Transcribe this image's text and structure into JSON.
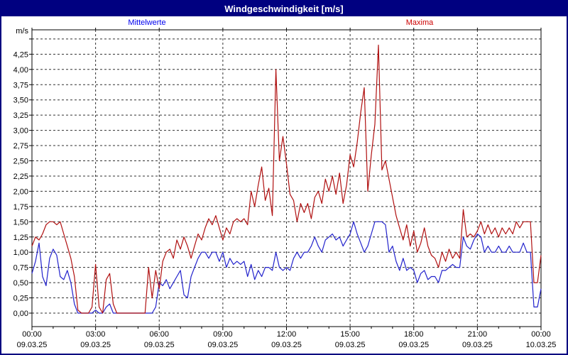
{
  "window": {
    "title": "Windgeschwindigkeit [m/s]",
    "title_bar_color": "#000080",
    "border_color": "#000080",
    "background": "#ffffff"
  },
  "legend": {
    "mean_label": "Mittelwerte",
    "mean_text_color": "#0000ee",
    "max_label": "Maxima",
    "max_text_color": "#cc0000"
  },
  "axes": {
    "y_unit_label": "m/s",
    "y_tick_labels": [
      "0,00",
      "0,25",
      "0,50",
      "0,75",
      "1,00",
      "1,25",
      "1,50",
      "1,75",
      "2,00",
      "2,25",
      "2,50",
      "2,75",
      "3,00",
      "3,25",
      "3,50",
      "3,75",
      "4,00",
      "4,25"
    ],
    "grid": "dashed horizontal every 0.25 m/s (top unlabeled line at 4.50) and dashed vertical every 3 hours"
  },
  "chart_data": {
    "type": "line",
    "title": "Windgeschwindigkeit [m/s]",
    "ylabel": "m/s",
    "ylim": [
      0,
      4.5
    ],
    "y_tick_step": 0.25,
    "x_start_min": 0,
    "x_step_min": 10,
    "x_total_min": 1440,
    "x_ticks": [
      {
        "time": "00:00",
        "date": "09.03.25"
      },
      {
        "time": "03:00",
        "date": "09.03.25"
      },
      {
        "time": "06:00",
        "date": "09.03.25"
      },
      {
        "time": "09:00",
        "date": "09.03.25"
      },
      {
        "time": "12:00",
        "date": "09.03.25"
      },
      {
        "time": "15:00",
        "date": "09.03.25"
      },
      {
        "time": "18:00",
        "date": "09.03.25"
      },
      {
        "time": "21:00",
        "date": "09.03.25"
      },
      {
        "time": "00:00",
        "date": "10.03.25"
      }
    ],
    "legend_position": "top",
    "series": [
      {
        "name": "Mittelwerte",
        "color": "#2222cc",
        "values": [
          0.65,
          0.85,
          1.15,
          0.6,
          0.45,
          0.9,
          1.05,
          0.95,
          0.6,
          0.55,
          0.7,
          0.5,
          0.15,
          0,
          0,
          0,
          0,
          0,
          0.05,
          0,
          0,
          0.1,
          0.15,
          0,
          0,
          0,
          0,
          0,
          0,
          0,
          0,
          0,
          0,
          0,
          0,
          0.1,
          0.5,
          0.45,
          0.55,
          0.4,
          0.5,
          0.6,
          0.7,
          0.3,
          0.25,
          0.6,
          0.75,
          0.9,
          1.0,
          1.0,
          0.9,
          1.0,
          1.0,
          0.85,
          1.0,
          0.75,
          0.9,
          0.8,
          0.85,
          0.8,
          0.85,
          0.6,
          0.8,
          0.55,
          0.7,
          0.6,
          0.75,
          0.75,
          0.7,
          1.0,
          0.75,
          0.7,
          0.75,
          0.7,
          0.9,
          1.0,
          0.9,
          1.0,
          1.0,
          1.1,
          1.25,
          1.1,
          1.0,
          1.2,
          1.25,
          1.3,
          1.2,
          1.25,
          1.1,
          1.2,
          1.3,
          1.5,
          1.3,
          1.15,
          1.0,
          1.1,
          1.3,
          1.5,
          1.5,
          1.5,
          1.45,
          1.0,
          1.1,
          0.85,
          0.7,
          0.9,
          0.7,
          0.75,
          0.7,
          0.5,
          0.65,
          0.7,
          0.55,
          0.6,
          0.6,
          0.5,
          0.7,
          0.7,
          0.75,
          0.8,
          0.75,
          0.75,
          1.25,
          1.1,
          1.05,
          1.2,
          1.3,
          1.25,
          1.0,
          1.1,
          1.0,
          1.0,
          1.1,
          1.0,
          1.0,
          1.1,
          1.0,
          1.0,
          1.0,
          1.15,
          1.0,
          1.0,
          0.1,
          0.1,
          0.4
        ]
      },
      {
        "name": "Maxima",
        "color": "#b01010",
        "values": [
          1.1,
          1.25,
          1.2,
          1.3,
          1.45,
          1.5,
          1.5,
          1.45,
          1.5,
          1.3,
          1.1,
          0.9,
          0.6,
          0.05,
          0,
          0,
          0,
          0.1,
          0.8,
          0.1,
          0,
          0.55,
          0.65,
          0.15,
          0,
          0,
          0,
          0,
          0,
          0,
          0,
          0,
          0,
          0.75,
          0.25,
          0.7,
          0.4,
          0.85,
          1.0,
          1.05,
          0.9,
          1.2,
          1.05,
          1.25,
          1.1,
          0.9,
          1.1,
          1.3,
          1.2,
          1.4,
          1.55,
          1.45,
          1.6,
          1.4,
          1.2,
          1.4,
          1.3,
          1.5,
          1.55,
          1.5,
          1.55,
          1.45,
          2.0,
          1.75,
          2.1,
          2.4,
          1.85,
          2.05,
          1.6,
          4.0,
          2.5,
          2.9,
          2.45,
          1.95,
          1.85,
          1.5,
          1.8,
          1.65,
          1.8,
          1.55,
          1.9,
          2.0,
          1.8,
          2.2,
          2.0,
          2.25,
          1.95,
          2.3,
          1.8,
          2.1,
          2.6,
          2.4,
          2.8,
          3.3,
          3.7,
          2.0,
          2.6,
          3.1,
          4.4,
          2.35,
          2.5,
          2.2,
          1.9,
          1.6,
          1.4,
          1.2,
          1.45,
          1.1,
          1.35,
          1.0,
          1.15,
          1.4,
          1.1,
          0.95,
          0.9,
          0.75,
          1.0,
          0.85,
          1.05,
          0.9,
          1.0,
          0.9,
          1.7,
          1.25,
          1.3,
          1.25,
          1.35,
          1.5,
          1.3,
          1.45,
          1.3,
          1.4,
          1.25,
          1.4,
          1.3,
          1.4,
          1.3,
          1.5,
          1.4,
          1.5,
          1.5,
          1.5,
          0.5,
          0.5,
          0.95
        ]
      }
    ]
  }
}
